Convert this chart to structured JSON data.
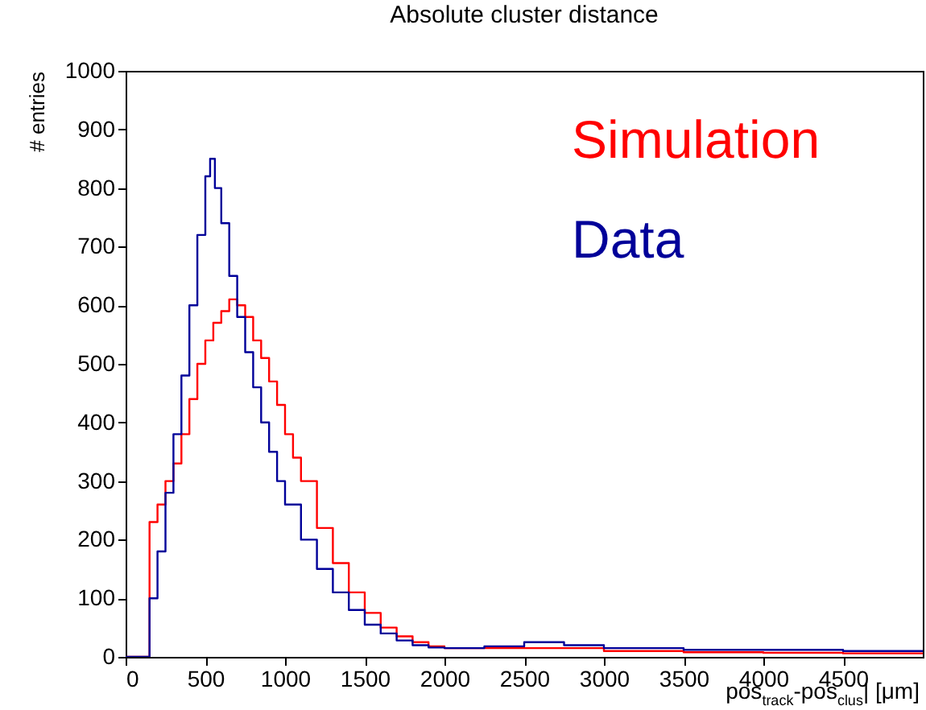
{
  "chart_data": {
    "type": "step",
    "title": "Absolute cluster distance",
    "xlabel": "pos$_{track}$-pos$_{clus}$| [μm]",
    "ylabel": "# entries",
    "xlim": [
      0,
      5000
    ],
    "xticks": [
      0,
      500,
      1000,
      1500,
      2000,
      2500,
      3000,
      3500,
      4000,
      4500
    ],
    "ylim": [
      0,
      1000
    ],
    "yticks": [
      0,
      100,
      200,
      300,
      400,
      500,
      600,
      700,
      800,
      900,
      1000
    ],
    "grid": false,
    "legend": "top right",
    "series": [
      {
        "name": "Simulation",
        "color": "#ff0000",
        "x": [
          0,
          100,
          150,
          200,
          250,
          300,
          350,
          400,
          450,
          500,
          550,
          600,
          650,
          700,
          750,
          800,
          850,
          900,
          950,
          1000,
          1050,
          1100,
          1200,
          1300,
          1400,
          1500,
          1600,
          1700,
          1800,
          1900,
          2000,
          2500,
          3000,
          3500,
          4000,
          4500,
          5000
        ],
        "values": [
          0,
          0,
          230,
          260,
          300,
          330,
          380,
          440,
          500,
          540,
          570,
          590,
          610,
          600,
          580,
          540,
          510,
          470,
          430,
          380,
          340,
          300,
          220,
          160,
          110,
          75,
          50,
          35,
          25,
          18,
          15,
          15,
          10,
          8,
          7,
          6,
          6
        ]
      },
      {
        "name": "Data",
        "color": "#000099",
        "x": [
          0,
          100,
          150,
          200,
          250,
          300,
          350,
          400,
          450,
          500,
          530,
          560,
          600,
          650,
          700,
          750,
          800,
          850,
          900,
          950,
          1000,
          1100,
          1200,
          1300,
          1400,
          1500,
          1600,
          1700,
          1800,
          1900,
          2000,
          2250,
          2500,
          2750,
          3000,
          3500,
          4000,
          4500,
          5000
        ],
        "values": [
          0,
          0,
          100,
          180,
          280,
          380,
          480,
          600,
          720,
          820,
          850,
          800,
          740,
          650,
          580,
          520,
          460,
          400,
          350,
          300,
          260,
          200,
          150,
          110,
          80,
          55,
          40,
          28,
          20,
          16,
          15,
          18,
          25,
          20,
          15,
          12,
          12,
          10,
          10
        ]
      }
    ]
  }
}
